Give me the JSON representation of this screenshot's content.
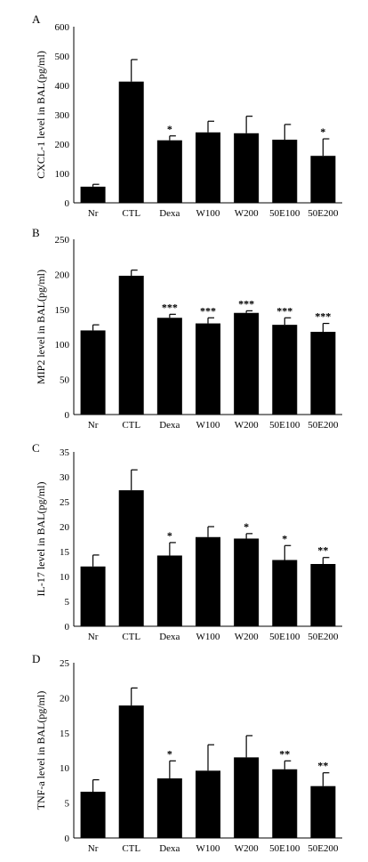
{
  "chart_data": [
    {
      "type": "bar",
      "panel_label": "A",
      "ylabel": "CXCL-1 level in BAL(pg/ml)",
      "categories": [
        "Nr",
        "CTL",
        "Dexa",
        "W100",
        "W200",
        "50E100",
        "50E200"
      ],
      "values": [
        55,
        413,
        213,
        240,
        237,
        215,
        160
      ],
      "errors": [
        8,
        75,
        15,
        38,
        58,
        52,
        58
      ],
      "annotations": [
        "",
        "",
        "*",
        "",
        "",
        "",
        "*"
      ],
      "ylim": [
        0,
        600
      ],
      "yticks": [
        "0",
        "100",
        "200",
        "300",
        "400",
        "500",
        "600"
      ],
      "bar_color": "#000000"
    },
    {
      "type": "bar",
      "panel_label": "B",
      "ylabel": "MIP2 level in BAL(pg/ml)",
      "categories": [
        "Nr",
        "CTL",
        "Dexa",
        "W100",
        "W200",
        "50E100",
        "50E200"
      ],
      "values": [
        120,
        198,
        138,
        130,
        145,
        128,
        118
      ],
      "errors": [
        8,
        8,
        5,
        8,
        3,
        10,
        12
      ],
      "annotations": [
        "",
        "",
        "***",
        "***",
        "***",
        "***",
        "***"
      ],
      "ylim": [
        0,
        250
      ],
      "yticks": [
        "0",
        "50",
        "100",
        "150",
        "200",
        "250"
      ],
      "bar_color": "#000000"
    },
    {
      "type": "bar",
      "panel_label": "C",
      "ylabel": "IL-17 level in BAL(pg/ml)",
      "categories": [
        "Nr",
        "CTL",
        "Dexa",
        "W100",
        "W200",
        "50E100",
        "50E200"
      ],
      "values": [
        12,
        27.3,
        14.2,
        17.9,
        17.6,
        13.3,
        12.5
      ],
      "errors": [
        2.3,
        4.1,
        2.6,
        2.1,
        1.0,
        2.9,
        1.3
      ],
      "annotations": [
        "",
        "",
        "*",
        "",
        "*",
        "*",
        "**"
      ],
      "ylim": [
        0,
        35
      ],
      "yticks": [
        "0",
        "5",
        "10",
        "15",
        "20",
        "25",
        "30",
        "35"
      ],
      "bar_color": "#000000"
    },
    {
      "type": "bar",
      "panel_label": "D",
      "ylabel": "TNF-a level in BAL(pg/ml)",
      "categories": [
        "Nr",
        "CTL",
        "Dexa",
        "W100",
        "W200",
        "50E100",
        "50E200"
      ],
      "values": [
        6.6,
        18.9,
        8.5,
        9.6,
        11.5,
        9.8,
        7.4
      ],
      "errors": [
        1.7,
        2.5,
        2.5,
        3.7,
        3.1,
        1.2,
        1.9
      ],
      "annotations": [
        "",
        "",
        "*",
        "",
        "",
        "**",
        "**"
      ],
      "ylim": [
        0,
        25
      ],
      "yticks": [
        "0",
        "5",
        "10",
        "15",
        "20",
        "25"
      ],
      "bar_color": "#000000"
    }
  ]
}
